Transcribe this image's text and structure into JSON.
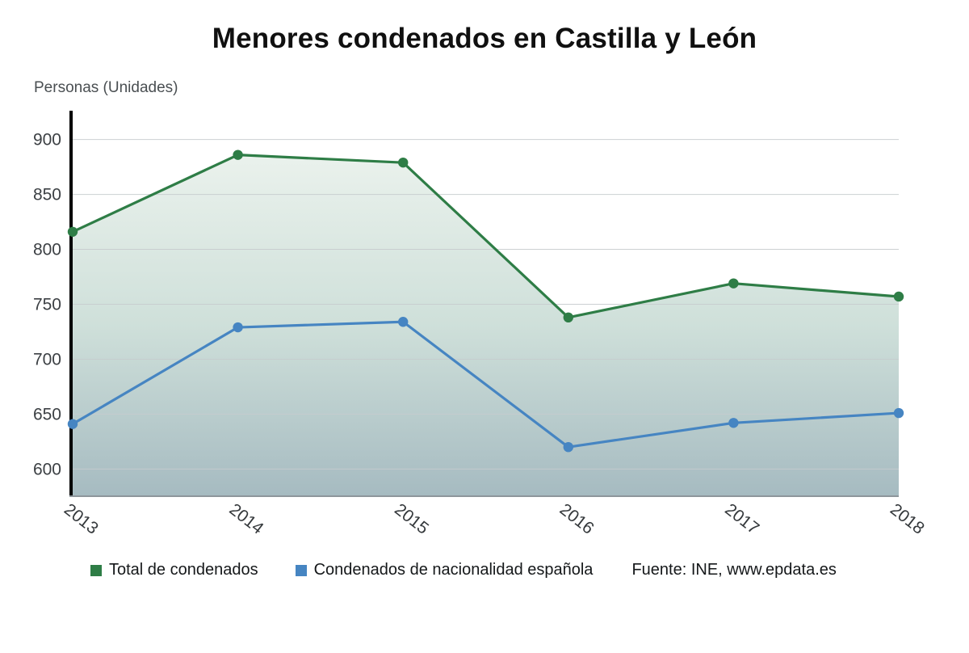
{
  "title": "Menores condenados en Castilla y León",
  "y_axis_title": "Personas (Unidades)",
  "source": "Fuente: INE, www.epdata.es",
  "legend": [
    {
      "label": "Total de condenados",
      "color": "#2e7d46"
    },
    {
      "label": "Condenados de nacionalidad española",
      "color": "#4685c2"
    }
  ],
  "chart_data": {
    "type": "line",
    "title": "Menores condenados en Castilla y León",
    "ylabel": "Personas (Unidades)",
    "x": [
      "2013",
      "2014",
      "2015",
      "2016",
      "2017",
      "2018"
    ],
    "yticks": [
      600,
      650,
      700,
      750,
      800,
      850,
      900
    ],
    "ylim": [
      576,
      924
    ],
    "grid": true,
    "legend_position": "bottom",
    "area_gradient": [
      "#f1f6f1",
      "#a6bbc1"
    ],
    "series": [
      {
        "name": "Total de condenados",
        "color": "#2e7d46",
        "marker": "circle",
        "area_fill": true,
        "values": [
          816,
          886,
          879,
          738,
          769,
          757
        ]
      },
      {
        "name": "Condenados de nacionalidad española",
        "color": "#4685c2",
        "marker": "circle",
        "area_fill": false,
        "values": [
          641,
          729,
          734,
          620,
          642,
          651
        ]
      }
    ]
  }
}
